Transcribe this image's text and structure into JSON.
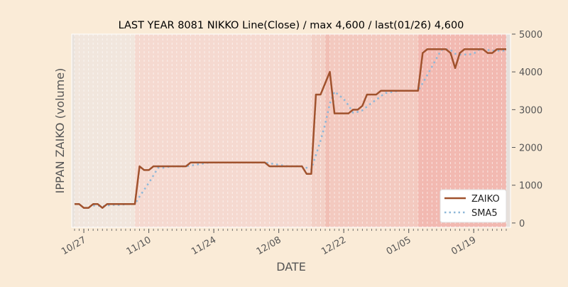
{
  "chart_data": {
    "type": "line",
    "title": "LAST YEAR 8081 NIKKO Line(Close) / max 4,600 / last(01/26) 4,600",
    "xlabel": "DATE",
    "ylabel": "IPPAN ZAIKO (volume)",
    "ylim": [
      -115,
      5000
    ],
    "yticks": [
      0,
      1000,
      2000,
      3000,
      4000,
      5000
    ],
    "start_date": "10/25",
    "end_date": "01/26",
    "xticks": [
      {
        "label": "10/27",
        "day": 2
      },
      {
        "label": "11/10",
        "day": 16
      },
      {
        "label": "11/24",
        "day": 30
      },
      {
        "label": "12/08",
        "day": 44
      },
      {
        "label": "12/22",
        "day": 58
      },
      {
        "label": "01/05",
        "day": 72
      },
      {
        "label": "01/19",
        "day": 86
      }
    ],
    "legend": {
      "position": "bottom-right",
      "entries": [
        "ZAIKO",
        "SMA5"
      ]
    },
    "grid": "vertical dashed daily",
    "series": [
      {
        "name": "ZAIKO",
        "color": "#a0522d",
        "style": "solid",
        "values": [
          500,
          500,
          400,
          400,
          500,
          500,
          400,
          500,
          500,
          500,
          500,
          500,
          500,
          500,
          1500,
          1400,
          1400,
          1500,
          1500,
          1500,
          1500,
          1500,
          1500,
          1500,
          1500,
          1600,
          1600,
          1600,
          1600,
          1600,
          1600,
          1600,
          1600,
          1600,
          1600,
          1600,
          1600,
          1600,
          1600,
          1600,
          1600,
          1600,
          1500,
          1500,
          1500,
          1500,
          1500,
          1500,
          1500,
          1500,
          1300,
          1300,
          3400,
          3400,
          3700,
          4000,
          2900,
          2900,
          2900,
          2900,
          3000,
          3000,
          3100,
          3400,
          3400,
          3400,
          3500,
          3500,
          3500,
          3500,
          3500,
          3500,
          3500,
          3500,
          3500,
          4500,
          4600,
          4600,
          4600,
          4600,
          4600,
          4500,
          4100,
          4500,
          4600,
          4600,
          4600,
          4600,
          4600,
          4500,
          4500,
          4600,
          4600,
          4600
        ]
      },
      {
        "name": "SMA5",
        "color": "#8fb8d8",
        "style": "dotted",
        "window": 5
      }
    ],
    "bands": [
      {
        "from": -0.6,
        "to": 0,
        "color": "#e8e2dc"
      },
      {
        "from": 0,
        "to": 13,
        "color": "#f1e6dd"
      },
      {
        "from": 13,
        "to": 51,
        "color": "#f5d9d0"
      },
      {
        "from": 51,
        "to": 54,
        "color": "#f3d0c6"
      },
      {
        "from": 54,
        "to": 55,
        "color": "#f1bfb5"
      },
      {
        "from": 55,
        "to": 74,
        "color": "#f3c9bf"
      },
      {
        "from": 74,
        "to": 93,
        "color": "#f2b9b1"
      },
      {
        "from": 93,
        "to": 94,
        "color": "#e6e0dc"
      }
    ]
  }
}
